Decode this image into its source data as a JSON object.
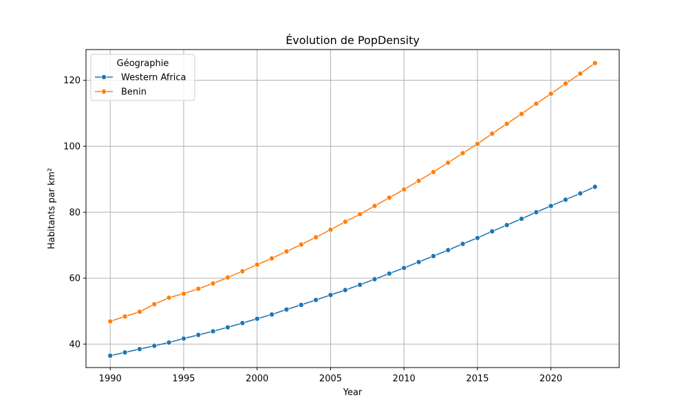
{
  "chart_data": {
    "type": "line",
    "title": "Évolution de PopDensity",
    "xlabel": "Year",
    "ylabel": "Habitants par km²",
    "xlim": [
      1988.35,
      2024.65
    ],
    "ylim": [
      32.9,
      129.3
    ],
    "xticks": [
      1990,
      1995,
      2000,
      2005,
      2010,
      2015,
      2020
    ],
    "yticks": [
      40,
      60,
      80,
      100,
      120
    ],
    "grid": true,
    "legend": {
      "title": "Géographie",
      "placement": "top-left"
    },
    "x": [
      1990,
      1991,
      1992,
      1993,
      1994,
      1995,
      1996,
      1997,
      1998,
      1999,
      2000,
      2001,
      2002,
      2003,
      2004,
      2005,
      2006,
      2007,
      2008,
      2009,
      2010,
      2011,
      2012,
      2013,
      2014,
      2015,
      2016,
      2017,
      2018,
      2019,
      2020,
      2021,
      2022,
      2023
    ],
    "series": [
      {
        "name": "Western Africa",
        "color": "#1f77b4",
        "values": [
          36.5,
          37.5,
          38.5,
          39.5,
          40.5,
          41.7,
          42.8,
          43.9,
          45.1,
          46.4,
          47.7,
          49.0,
          50.5,
          51.9,
          53.4,
          54.9,
          56.4,
          58.0,
          59.7,
          61.4,
          63.1,
          64.9,
          66.7,
          68.5,
          70.4,
          72.2,
          74.2,
          76.1,
          78.0,
          80.0,
          81.9,
          83.8,
          85.7,
          87.7
        ]
      },
      {
        "name": "Benin",
        "color": "#ff7f0e",
        "values": [
          46.9,
          48.4,
          49.8,
          52.1,
          54.1,
          55.3,
          56.8,
          58.4,
          60.2,
          62.1,
          64.1,
          66.0,
          68.1,
          70.2,
          72.4,
          74.7,
          77.1,
          79.4,
          81.9,
          84.4,
          86.9,
          89.5,
          92.2,
          95.0,
          97.9,
          100.7,
          103.8,
          106.8,
          109.8,
          112.9,
          115.9,
          119.0,
          122.0,
          125.2
        ]
      }
    ]
  }
}
